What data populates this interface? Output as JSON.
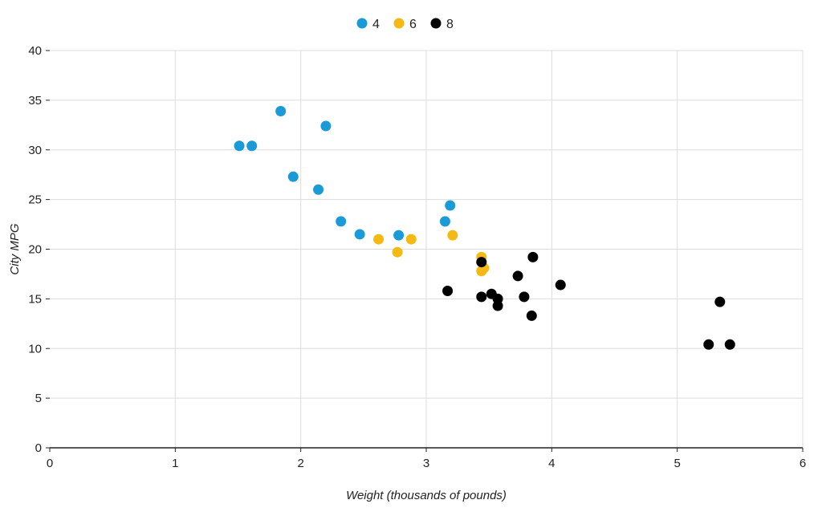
{
  "chart_data": {
    "type": "scatter",
    "xlabel": "Weight (thousands of pounds)",
    "ylabel": "City MPG",
    "xlim": [
      0,
      6
    ],
    "ylim": [
      0,
      40
    ],
    "x_ticks": [
      0,
      1,
      2,
      3,
      4,
      5,
      6
    ],
    "y_ticks": [
      0,
      5,
      10,
      15,
      20,
      25,
      30,
      35,
      40
    ],
    "grid": true,
    "legend_position": "top-center",
    "series": [
      {
        "name": "4",
        "color": "#1a9ad6",
        "points": [
          [
            1.51,
            30.4
          ],
          [
            1.61,
            30.4
          ],
          [
            1.84,
            33.9
          ],
          [
            1.94,
            27.3
          ],
          [
            2.14,
            26.0
          ],
          [
            2.2,
            32.4
          ],
          [
            2.32,
            22.8
          ],
          [
            2.47,
            21.5
          ],
          [
            2.78,
            21.4
          ],
          [
            3.15,
            22.8
          ],
          [
            3.19,
            24.4
          ]
        ]
      },
      {
        "name": "6",
        "color": "#f5b914",
        "points": [
          [
            2.62,
            21.0
          ],
          [
            2.77,
            19.7
          ],
          [
            2.88,
            21.0
          ],
          [
            3.21,
            21.4
          ],
          [
            3.44,
            17.8
          ],
          [
            3.44,
            19.2
          ],
          [
            3.46,
            18.1
          ]
        ]
      },
      {
        "name": "8",
        "color": "#000000",
        "points": [
          [
            3.17,
            15.8
          ],
          [
            3.44,
            18.7
          ],
          [
            3.44,
            15.2
          ],
          [
            3.52,
            15.5
          ],
          [
            3.57,
            15.0
          ],
          [
            3.57,
            14.3
          ],
          [
            3.73,
            17.3
          ],
          [
            3.78,
            15.2
          ],
          [
            3.84,
            13.3
          ],
          [
            3.85,
            19.2
          ],
          [
            4.07,
            16.4
          ],
          [
            5.25,
            10.4
          ],
          [
            5.34,
            14.7
          ],
          [
            5.42,
            10.4
          ]
        ]
      }
    ]
  }
}
